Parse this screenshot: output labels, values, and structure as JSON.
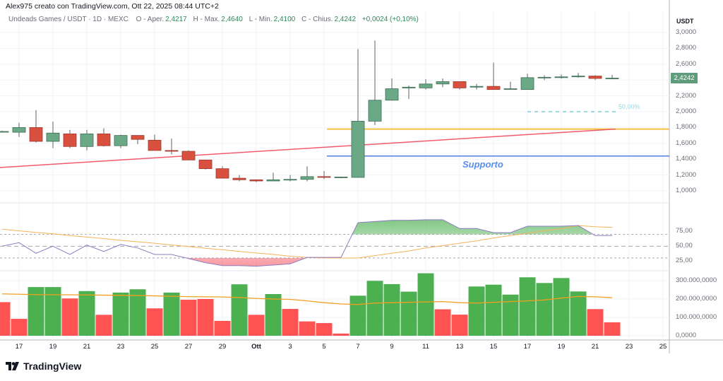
{
  "header": {
    "attribution": "Alex975 creato con TradingView.com, Ott 22, 2025 08:44 UTC+2"
  },
  "legend": {
    "symbol": "Undeads Games / USDT · 1D · MEXC",
    "open_label": "O - Aper.",
    "open": "2,4217",
    "high_label": "H - Max.",
    "high": "2,4640",
    "low_label": "L - Min.",
    "low": "2,4100",
    "close_label": "C - Chius.",
    "close": "2,4242",
    "change": "+0,0024 (+0,10%)"
  },
  "price_axis": {
    "unit": "USDT",
    "ticks": [
      "3,0000",
      "2,8000",
      "2,6000",
      "2,2000",
      "2,0000",
      "1,8000",
      "1,6000",
      "1,4000",
      "1,2000",
      "1,0000"
    ],
    "tick_values": [
      3.0,
      2.8,
      2.6,
      2.2,
      2.0,
      1.8,
      1.6,
      1.4,
      1.2,
      1.0
    ],
    "last_price_label": "2,4242"
  },
  "rsi_axis": {
    "ticks": [
      "75,00",
      "50,00",
      "25,00"
    ],
    "tick_values": [
      75,
      50,
      25
    ]
  },
  "volume_axis": {
    "ticks": [
      "300.000,0000",
      "200.000,0000",
      "100.000,0000",
      "0,0000"
    ],
    "tick_values": [
      300,
      200,
      100,
      0
    ]
  },
  "time_axis": {
    "labels": [
      "17",
      "19",
      "21",
      "23",
      "25",
      "27",
      "29",
      "Ott",
      "3",
      "5",
      "7",
      "9",
      "11",
      "13",
      "15",
      "17",
      "19",
      "21",
      "23",
      "25"
    ],
    "label_day_index": [
      1,
      3,
      5,
      7,
      9,
      11,
      13,
      15,
      17,
      19,
      21,
      23,
      25,
      27,
      29,
      31,
      33,
      35,
      37,
      39
    ]
  },
  "annotations": {
    "support_label": "Supporto",
    "fib_label": "50,00%"
  },
  "colors": {
    "candle_up": "#6aa886",
    "candle_down": "#d9503f",
    "wick": "#5d6068",
    "volume_up": "#4caf50",
    "volume_down": "#ff5252",
    "volume_ma": "#f0a020",
    "rsi": "#8e7cc3",
    "rsi_ma": "#f5b35a",
    "support_line": "#4f7fe6",
    "resistance_line": "#f5c044",
    "trend_line": "#ef5b6b",
    "fib_line": "#6fd3dc"
  },
  "brand": {
    "logo_text": "TradingView"
  },
  "chart_data": {
    "type": "candlestick",
    "dates": [
      "2025-09-16",
      "2025-09-17",
      "2025-09-18",
      "2025-09-19",
      "2025-09-20",
      "2025-09-21",
      "2025-09-22",
      "2025-09-23",
      "2025-09-24",
      "2025-09-25",
      "2025-09-26",
      "2025-09-27",
      "2025-09-28",
      "2025-09-29",
      "2025-09-30",
      "2025-10-01",
      "2025-10-02",
      "2025-10-03",
      "2025-10-04",
      "2025-10-05",
      "2025-10-06",
      "2025-10-07",
      "2025-10-08",
      "2025-10-09",
      "2025-10-10",
      "2025-10-11",
      "2025-10-12",
      "2025-10-13",
      "2025-10-14",
      "2025-10-15",
      "2025-10-16",
      "2025-10-17",
      "2025-10-18",
      "2025-10-19",
      "2025-10-20",
      "2025-10-21",
      "2025-10-22"
    ],
    "open": [
      1.75,
      1.74,
      1.8,
      1.625,
      1.72,
      1.56,
      1.72,
      1.57,
      1.7,
      1.64,
      1.51,
      1.5,
      1.39,
      1.28,
      1.16,
      1.14,
      1.125,
      1.14,
      1.145,
      1.18,
      1.17,
      1.17,
      1.88,
      2.145,
      2.3,
      2.3,
      2.35,
      2.38,
      2.31,
      2.32,
      2.285,
      2.28,
      2.43,
      2.43,
      2.44,
      2.45,
      2.4217
    ],
    "high": [
      1.76,
      1.86,
      2.02,
      1.875,
      1.77,
      1.77,
      1.79,
      1.71,
      1.7,
      1.71,
      1.66,
      1.51,
      1.39,
      1.31,
      1.2,
      1.14,
      1.23,
      1.2,
      1.31,
      1.25,
      1.18,
      2.79,
      2.9,
      2.42,
      2.33,
      2.41,
      2.42,
      2.38,
      2.35,
      2.62,
      2.38,
      2.48,
      2.46,
      2.47,
      2.49,
      2.46,
      2.464
    ],
    "low": [
      1.74,
      1.68,
      1.61,
      1.54,
      1.54,
      1.51,
      1.56,
      1.54,
      1.59,
      1.51,
      1.46,
      1.39,
      1.27,
      1.16,
      1.12,
      1.11,
      1.12,
      1.12,
      1.12,
      1.15,
      1.16,
      1.17,
      1.83,
      2.14,
      2.16,
      2.28,
      2.31,
      2.28,
      2.28,
      2.28,
      2.28,
      2.28,
      2.4,
      2.42,
      2.43,
      2.4,
      2.41
    ],
    "close": [
      1.75,
      1.8,
      1.625,
      1.73,
      1.56,
      1.72,
      1.57,
      1.7,
      1.65,
      1.51,
      1.5,
      1.39,
      1.28,
      1.16,
      1.14,
      1.125,
      1.14,
      1.145,
      1.18,
      1.17,
      1.175,
      1.88,
      2.145,
      2.29,
      2.31,
      2.35,
      2.38,
      2.3,
      2.32,
      2.28,
      2.29,
      2.43,
      2.435,
      2.44,
      2.45,
      2.42,
      2.4242
    ],
    "price_range": [
      0.85,
      3.1
    ],
    "lines": {
      "support": 1.44,
      "resistance": 1.78,
      "trend": {
        "from": [
          "2025-09-16",
          1.295
        ],
        "to": [
          "2025-10-22",
          1.78
        ]
      },
      "fib_50": {
        "value": 2.0,
        "from": "2025-10-17",
        "to": "2025-10-22"
      },
      "support_start": "2025-10-06"
    },
    "rsi": [
      50,
      56,
      38,
      50,
      36,
      52,
      41,
      53,
      47,
      36,
      36,
      29,
      22,
      17,
      17,
      16,
      18,
      20,
      31,
      31,
      31,
      90,
      92,
      94,
      94,
      95,
      95,
      80,
      80,
      73,
      73,
      84,
      84,
      84,
      85,
      68,
      68
    ],
    "rsi_ma": [
      79,
      76,
      73.5,
      71,
      68,
      65.5,
      63,
      60,
      57.5,
      55,
      52,
      49.5,
      46.5,
      44,
      41,
      38.5,
      36,
      33,
      31,
      30,
      30,
      30,
      34,
      38,
      42,
      47,
      51,
      55,
      59,
      64,
      68,
      72,
      76,
      80,
      85,
      83,
      82
    ],
    "rsi_levels": [
      70,
      50,
      30
    ],
    "volume_millions": [
      183,
      92,
      265,
      265,
      203,
      243,
      114,
      235,
      253,
      149,
      235,
      196,
      200,
      81,
      280,
      114,
      227,
      146,
      78,
      69,
      12,
      218,
      299,
      281,
      240,
      340,
      144,
      115,
      268,
      278,
      224,
      318,
      287,
      314,
      241,
      145,
      73
    ],
    "volume_direction": [
      "down",
      "down",
      "up",
      "up",
      "down",
      "up",
      "down",
      "up",
      "up",
      "down",
      "up",
      "down",
      "down",
      "down",
      "up",
      "down",
      "up",
      "down",
      "down",
      "down",
      "down",
      "up",
      "up",
      "up",
      "up",
      "up",
      "down",
      "down",
      "up",
      "up",
      "up",
      "up",
      "up",
      "up",
      "up",
      "down",
      "down"
    ],
    "volume_ma_millions": [
      228,
      226,
      224,
      223,
      223,
      222,
      221,
      220,
      219,
      217,
      215,
      213,
      212,
      211,
      208,
      203,
      200,
      198,
      190,
      180,
      173,
      170,
      178,
      180,
      182,
      184,
      186,
      180,
      178,
      182,
      186,
      190,
      195,
      205,
      214,
      212,
      207
    ]
  }
}
